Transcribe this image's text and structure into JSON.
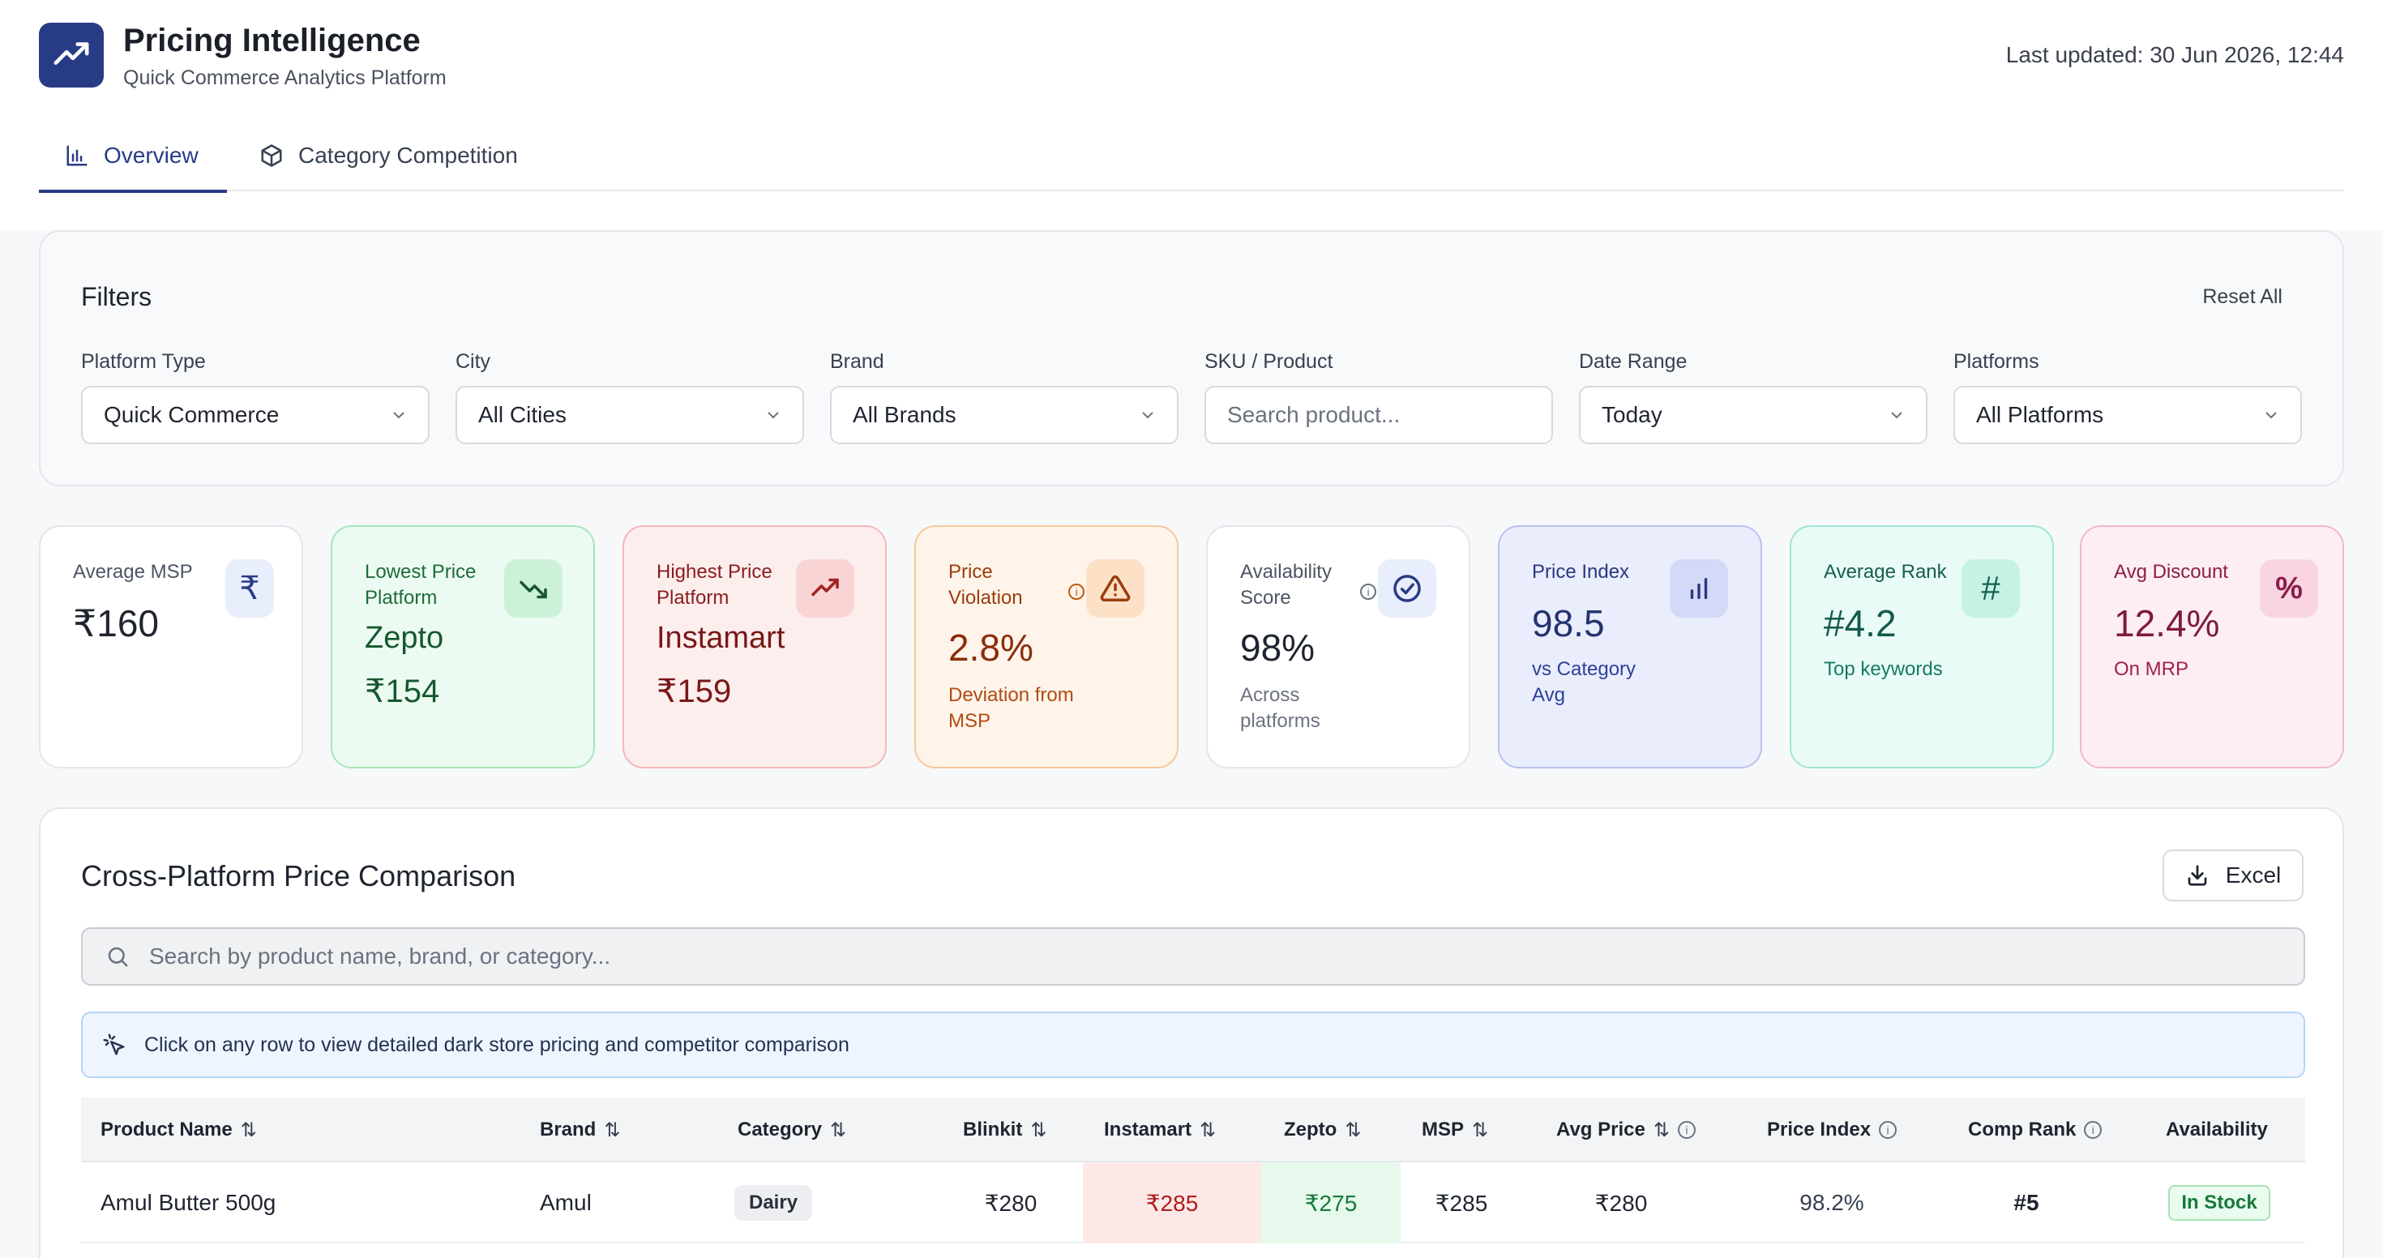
{
  "app": {
    "title": "Pricing Intelligence",
    "subtitle": "Quick Commerce Analytics Platform",
    "last_updated": "Last updated: 30 Jun 2026, 12:44",
    "brand_color": "#283b86"
  },
  "tabs": [
    {
      "label": "Overview",
      "active": true,
      "icon": "bar-chart-icon"
    },
    {
      "label": "Category Competition",
      "active": false,
      "icon": "box-icon"
    }
  ],
  "filters": {
    "title": "Filters",
    "reset_label": "Reset All",
    "items": [
      {
        "label": "Platform Type",
        "value": "Quick Commerce"
      },
      {
        "label": "City",
        "value": "All Cities"
      },
      {
        "label": "Brand",
        "value": "All Brands"
      },
      {
        "label": "SKU / Product",
        "placeholder": "Search product..."
      },
      {
        "label": "Date Range",
        "value": "Today"
      },
      {
        "label": "Platforms",
        "value": "All Platforms"
      }
    ]
  },
  "kpis": [
    {
      "label": "Average MSP",
      "value": "₹160",
      "icon": "rupee-icon"
    },
    {
      "label": "Lowest Price Platform",
      "value": "Zepto",
      "value2": "₹154",
      "icon": "trending-down-icon"
    },
    {
      "label": "Highest Price Platform",
      "value": "Instamart",
      "value2": "₹159",
      "icon": "trending-up-icon"
    },
    {
      "label": "Price Violation",
      "value": "2.8%",
      "sub": "Deviation from MSP",
      "icon": "alert-triangle-icon"
    },
    {
      "label": "Availability Score",
      "value": "98%",
      "sub": "Across platforms",
      "icon": "check-circle-icon"
    },
    {
      "label": "Price Index",
      "value": "98.5",
      "sub": "vs Category Avg",
      "icon": "bar-chart-icon"
    },
    {
      "label": "Average Rank",
      "value": "#4.2",
      "sub": "Top keywords",
      "icon": "hash-icon"
    },
    {
      "label": "Avg Discount",
      "value": "12.4%",
      "sub": "On MRP",
      "icon": "percent-icon"
    }
  ],
  "comparison": {
    "title": "Cross-Platform Price Comparison",
    "excel_label": "Excel",
    "search_placeholder": "Search by product name, brand, or category...",
    "info_text": "Click on any row to view detailed dark store pricing and competitor comparison",
    "columns": [
      "Product Name",
      "Brand",
      "Category",
      "Blinkit",
      "Instamart",
      "Zepto",
      "MSP",
      "Avg Price",
      "Price Index",
      "Comp Rank",
      "Availability"
    ],
    "rows": [
      {
        "product": "Amul Butter 500g",
        "brand": "Amul",
        "category": "Dairy",
        "blinkit": "₹280",
        "instamart": "₹285",
        "zepto": "₹275",
        "msp": "₹285",
        "avg_price": "₹280",
        "price_index": "98.2%",
        "comp_rank": "#5",
        "availability": "In Stock"
      }
    ]
  }
}
